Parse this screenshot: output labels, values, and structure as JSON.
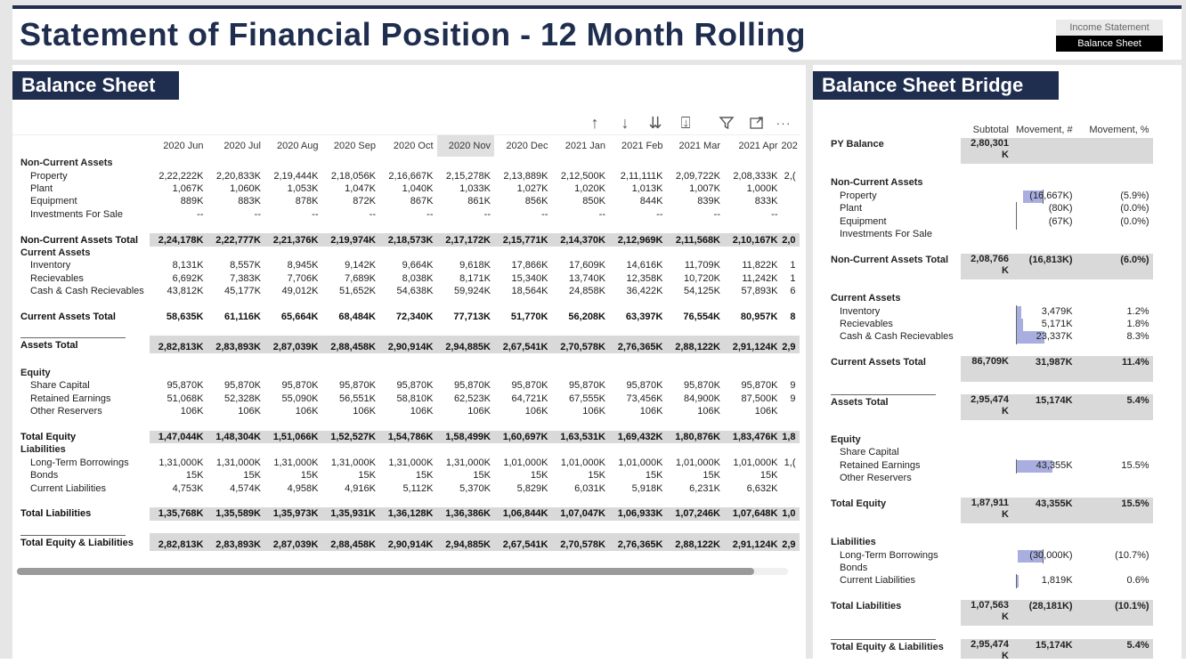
{
  "header": {
    "title": "Statement of Financial Position - 12 Month Rolling",
    "nav": {
      "income_statement": "Income Statement",
      "balance_sheet": "Balance Sheet"
    }
  },
  "left": {
    "title": "Balance Sheet",
    "toolbar_icons": [
      "drill-up-icon",
      "drill-down-icon",
      "expand-all-down-icon",
      "expand-hierarchy-icon",
      "filter-icon",
      "focus-mode-icon",
      "more-options-icon"
    ],
    "months": [
      "2020 Jun",
      "2020 Jul",
      "2020 Aug",
      "2020 Sep",
      "2020 Oct",
      "2020 Nov",
      "2020 Dec",
      "2021 Jan",
      "2021 Feb",
      "2021 Mar",
      "2021 Apr",
      "202"
    ],
    "selected_month": "2020 Nov",
    "rows": [
      {
        "label": "Non-Current Assets",
        "type": "group",
        "values": [
          "",
          "",
          "",
          "",
          "",
          "",
          "",
          "",
          "",
          "",
          "",
          ""
        ]
      },
      {
        "label": "Property",
        "type": "child",
        "values": [
          "2,22,222K",
          "2,20,833K",
          "2,19,444K",
          "2,18,056K",
          "2,16,667K",
          "2,15,278K",
          "2,13,889K",
          "2,12,500K",
          "2,11,111K",
          "2,09,722K",
          "2,08,333K",
          "2,("
        ]
      },
      {
        "label": "Plant",
        "type": "child",
        "values": [
          "1,067K",
          "1,060K",
          "1,053K",
          "1,047K",
          "1,040K",
          "1,033K",
          "1,027K",
          "1,020K",
          "1,013K",
          "1,007K",
          "1,000K",
          ""
        ]
      },
      {
        "label": "Equipment",
        "type": "child",
        "values": [
          "889K",
          "883K",
          "878K",
          "872K",
          "867K",
          "861K",
          "856K",
          "850K",
          "844K",
          "839K",
          "833K",
          ""
        ]
      },
      {
        "label": "Investments For Sale",
        "type": "child",
        "values": [
          "--",
          "--",
          "--",
          "--",
          "--",
          "--",
          "--",
          "--",
          "--",
          "--",
          "--",
          ""
        ]
      },
      {
        "label": "",
        "type": "spacer",
        "values": []
      },
      {
        "label": "Non-Current Assets Total",
        "type": "total",
        "values": [
          "2,24,178K",
          "2,22,777K",
          "2,21,376K",
          "2,19,974K",
          "2,18,573K",
          "2,17,172K",
          "2,15,771K",
          "2,14,370K",
          "2,12,969K",
          "2,11,568K",
          "2,10,167K",
          "2,0"
        ]
      },
      {
        "label": "Current Assets",
        "type": "group",
        "values": [
          "",
          "",
          "",
          "",
          "",
          "",
          "",
          "",
          "",
          "",
          "",
          ""
        ]
      },
      {
        "label": "Inventory",
        "type": "child",
        "values": [
          "8,131K",
          "8,557K",
          "8,945K",
          "9,142K",
          "9,664K",
          "9,618K",
          "17,866K",
          "17,609K",
          "14,616K",
          "11,709K",
          "11,822K",
          "1"
        ]
      },
      {
        "label": "Recievables",
        "type": "child",
        "values": [
          "6,692K",
          "7,383K",
          "7,706K",
          "7,689K",
          "8,038K",
          "8,171K",
          "15,340K",
          "13,740K",
          "12,358K",
          "10,720K",
          "11,242K",
          "1"
        ]
      },
      {
        "label": "Cash & Cash Recievables",
        "type": "child",
        "values": [
          "43,812K",
          "45,177K",
          "49,012K",
          "51,652K",
          "54,638K",
          "59,924K",
          "18,564K",
          "24,858K",
          "36,422K",
          "54,125K",
          "57,893K",
          "6"
        ]
      },
      {
        "label": "",
        "type": "spacer",
        "values": []
      },
      {
        "label": "Current Assets Total",
        "type": "total-plain",
        "values": [
          "58,635K",
          "61,116K",
          "65,664K",
          "68,484K",
          "72,340K",
          "77,713K",
          "51,770K",
          "56,208K",
          "63,397K",
          "76,554K",
          "80,957K",
          "8"
        ]
      },
      {
        "label": "",
        "type": "spacer",
        "values": []
      },
      {
        "label": "Assets Total",
        "type": "gt",
        "values": [
          "2,82,813K",
          "2,83,893K",
          "2,87,039K",
          "2,88,458K",
          "2,90,914K",
          "2,94,885K",
          "2,67,541K",
          "2,70,578K",
          "2,76,365K",
          "2,88,122K",
          "2,91,124K",
          "2,9"
        ]
      },
      {
        "label": "",
        "type": "spacer",
        "values": []
      },
      {
        "label": "Equity",
        "type": "group",
        "values": [
          "",
          "",
          "",
          "",
          "",
          "",
          "",
          "",
          "",
          "",
          "",
          ""
        ]
      },
      {
        "label": "Share Capital",
        "type": "child",
        "values": [
          "95,870K",
          "95,870K",
          "95,870K",
          "95,870K",
          "95,870K",
          "95,870K",
          "95,870K",
          "95,870K",
          "95,870K",
          "95,870K",
          "95,870K",
          "9"
        ]
      },
      {
        "label": "Retained Earnings",
        "type": "child",
        "values": [
          "51,068K",
          "52,328K",
          "55,090K",
          "56,551K",
          "58,810K",
          "62,523K",
          "64,721K",
          "67,555K",
          "73,456K",
          "84,900K",
          "87,500K",
          "9"
        ]
      },
      {
        "label": "Other Reservers",
        "type": "child",
        "values": [
          "106K",
          "106K",
          "106K",
          "106K",
          "106K",
          "106K",
          "106K",
          "106K",
          "106K",
          "106K",
          "106K",
          ""
        ]
      },
      {
        "label": "",
        "type": "spacer",
        "values": []
      },
      {
        "label": "Total Equity",
        "type": "total",
        "values": [
          "1,47,044K",
          "1,48,304K",
          "1,51,066K",
          "1,52,527K",
          "1,54,786K",
          "1,58,499K",
          "1,60,697K",
          "1,63,531K",
          "1,69,432K",
          "1,80,876K",
          "1,83,476K",
          "1,8"
        ]
      },
      {
        "label": "Liabilities",
        "type": "group",
        "values": [
          "",
          "",
          "",
          "",
          "",
          "",
          "",
          "",
          "",
          "",
          "",
          ""
        ]
      },
      {
        "label": "Long-Term Borrowings",
        "type": "child",
        "values": [
          "1,31,000K",
          "1,31,000K",
          "1,31,000K",
          "1,31,000K",
          "1,31,000K",
          "1,31,000K",
          "1,01,000K",
          "1,01,000K",
          "1,01,000K",
          "1,01,000K",
          "1,01,000K",
          "1,("
        ]
      },
      {
        "label": "Bonds",
        "type": "child",
        "values": [
          "15K",
          "15K",
          "15K",
          "15K",
          "15K",
          "15K",
          "15K",
          "15K",
          "15K",
          "15K",
          "15K",
          ""
        ]
      },
      {
        "label": "Current Liabilities",
        "type": "child",
        "values": [
          "4,753K",
          "4,574K",
          "4,958K",
          "4,916K",
          "5,112K",
          "5,370K",
          "5,829K",
          "6,031K",
          "5,918K",
          "6,231K",
          "6,632K",
          ""
        ]
      },
      {
        "label": "",
        "type": "spacer",
        "values": []
      },
      {
        "label": "Total Liabilities",
        "type": "total",
        "values": [
          "1,35,768K",
          "1,35,589K",
          "1,35,973K",
          "1,35,931K",
          "1,36,128K",
          "1,36,386K",
          "1,06,844K",
          "1,07,047K",
          "1,06,933K",
          "1,07,246K",
          "1,07,648K",
          "1,0"
        ]
      },
      {
        "label": "",
        "type": "spacer",
        "values": []
      },
      {
        "label": "Total Equity & Liabilities",
        "type": "gt",
        "values": [
          "2,82,813K",
          "2,83,893K",
          "2,87,039K",
          "2,88,458K",
          "2,90,914K",
          "2,94,885K",
          "2,67,541K",
          "2,70,578K",
          "2,76,365K",
          "2,88,122K",
          "2,91,124K",
          "2,9"
        ]
      }
    ]
  },
  "right": {
    "title": "Balance Sheet Bridge",
    "columns": {
      "subtotal": "Subtotal",
      "movement_num": "Movement, #",
      "movement_pct": "Movement, %"
    },
    "rows": [
      {
        "label": "PY Balance",
        "type": "b",
        "subtotal": "2,80,301 K",
        "mvt": "",
        "pct": "",
        "shade_mvt": true
      },
      {
        "label": "",
        "type": "spacer"
      },
      {
        "label": "Non-Current Assets",
        "type": "group",
        "subtotal": "",
        "mvt": "",
        "pct": ""
      },
      {
        "label": "Property",
        "type": "child",
        "subtotal": "",
        "mvt": "(16,667K)",
        "pct": "(5.9%)",
        "bar": -0.55
      },
      {
        "label": "Plant",
        "type": "child",
        "subtotal": "",
        "mvt": "(80K)",
        "pct": "(0.0%)",
        "bar": 0
      },
      {
        "label": "Equipment",
        "type": "child",
        "subtotal": "",
        "mvt": "(67K)",
        "pct": "(0.0%)",
        "bar": 0
      },
      {
        "label": "Investments For Sale",
        "type": "child",
        "subtotal": "",
        "mvt": "",
        "pct": ""
      },
      {
        "label": "",
        "type": "spacer"
      },
      {
        "label": "Non-Current Assets Total",
        "type": "b",
        "subtotal": "2,08,766 K",
        "mvt": "(16,813K)",
        "pct": "(6.0%)",
        "shade_all": true
      },
      {
        "label": "",
        "type": "spacer"
      },
      {
        "label": "Current Assets",
        "type": "group",
        "subtotal": "",
        "mvt": "",
        "pct": ""
      },
      {
        "label": "Inventory",
        "type": "child",
        "subtotal": "",
        "mvt": "3,479K",
        "pct": "1.2%",
        "bar": 0.12
      },
      {
        "label": "Recievables",
        "type": "child",
        "subtotal": "",
        "mvt": "5,171K",
        "pct": "1.8%",
        "bar": 0.17
      },
      {
        "label": "Cash & Cash Recievables",
        "type": "child",
        "subtotal": "",
        "mvt": "23,337K",
        "pct": "8.3%",
        "bar": 0.78
      },
      {
        "label": "",
        "type": "spacer"
      },
      {
        "label": "Current Assets Total",
        "type": "b",
        "subtotal": "86,709K",
        "mvt": "31,987K",
        "pct": "11.4%",
        "shade_all": true
      },
      {
        "label": "",
        "type": "spacer"
      },
      {
        "label": "Assets Total",
        "type": "b",
        "subtotal": "2,95,474 K",
        "mvt": "15,174K",
        "pct": "5.4%",
        "shade_all": true,
        "rule": true
      },
      {
        "label": "",
        "type": "spacer"
      },
      {
        "label": "Equity",
        "type": "group",
        "subtotal": "",
        "mvt": "",
        "pct": ""
      },
      {
        "label": "Share Capital",
        "type": "child",
        "subtotal": "",
        "mvt": "",
        "pct": ""
      },
      {
        "label": "Retained Earnings",
        "type": "child",
        "subtotal": "",
        "mvt": "43,355K",
        "pct": "15.5%",
        "bar": 1.0
      },
      {
        "label": "Other Reservers",
        "type": "child",
        "subtotal": "",
        "mvt": "",
        "pct": ""
      },
      {
        "label": "",
        "type": "spacer"
      },
      {
        "label": "Total Equity",
        "type": "b",
        "subtotal": "1,87,911 K",
        "mvt": "43,355K",
        "pct": "15.5%",
        "shade_all": true
      },
      {
        "label": "",
        "type": "spacer"
      },
      {
        "label": "Liabilities",
        "type": "group",
        "subtotal": "",
        "mvt": "",
        "pct": ""
      },
      {
        "label": "Long-Term Borrowings",
        "type": "child",
        "subtotal": "",
        "mvt": "(30,000K)",
        "pct": "(10.7%)",
        "bar": -0.7
      },
      {
        "label": "Bonds",
        "type": "child",
        "subtotal": "",
        "mvt": "",
        "pct": ""
      },
      {
        "label": "Current Liabilities",
        "type": "child",
        "subtotal": "",
        "mvt": "1,819K",
        "pct": "0.6%",
        "bar": 0.04
      },
      {
        "label": "",
        "type": "spacer"
      },
      {
        "label": "Total Liabilities",
        "type": "b",
        "subtotal": "1,07,563 K",
        "mvt": "(28,181K)",
        "pct": "(10.1%)",
        "shade_all": true
      },
      {
        "label": "",
        "type": "spacer"
      },
      {
        "label": "Total Equity & Liabilities",
        "type": "b",
        "subtotal": "2,95,474 K",
        "mvt": "15,174K",
        "pct": "5.4%",
        "shade_all": true,
        "rule": true
      }
    ]
  },
  "colors": {
    "navy": "#1f2d4e",
    "bar": "#a9aee0",
    "shade": "#d9d9d9"
  }
}
